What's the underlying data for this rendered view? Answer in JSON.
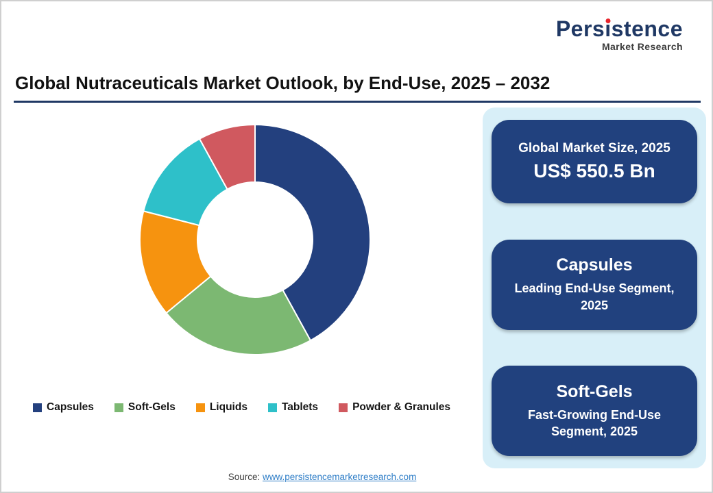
{
  "page": {
    "title": "Global Nutraceuticals Market Outlook, by End-Use, 2025 – 2032",
    "source_label": "Source:",
    "source_link": "www.persistencemarketresearch.com"
  },
  "logo": {
    "name": "Persistence",
    "subtitle": "Market Research",
    "brand_color": "#1F3864",
    "accent_color": "#E8262D"
  },
  "chart_data": {
    "type": "pie",
    "donut": true,
    "title": "Global Nutraceuticals Market Outlook, by End-Use, 2025 – 2032",
    "legend_position": "bottom",
    "unit": "percent (estimated from arc angles; no data labels shown)",
    "segments": [
      {
        "label": "Capsules",
        "value": 42,
        "color": "#23407E"
      },
      {
        "label": "Soft-Gels",
        "value": 22,
        "color": "#7CB872"
      },
      {
        "label": "Liquids",
        "value": 15,
        "color": "#F6930F"
      },
      {
        "label": "Tablets",
        "value": 13,
        "color": "#2EC0C9"
      },
      {
        "label": "Powder & Granules",
        "value": 8,
        "color": "#D0595F"
      }
    ]
  },
  "panel": {
    "background_color": "#D8EFF8",
    "card_color": "#21417E",
    "cards": [
      {
        "title": "Global Market Size, 2025",
        "value": "US$ 550.5 Bn"
      },
      {
        "title": "Capsules",
        "subtitle": "Leading End-Use Segment, 2025"
      },
      {
        "title": "Soft-Gels",
        "subtitle": "Fast-Growing End-Use Segment, 2025"
      }
    ]
  }
}
